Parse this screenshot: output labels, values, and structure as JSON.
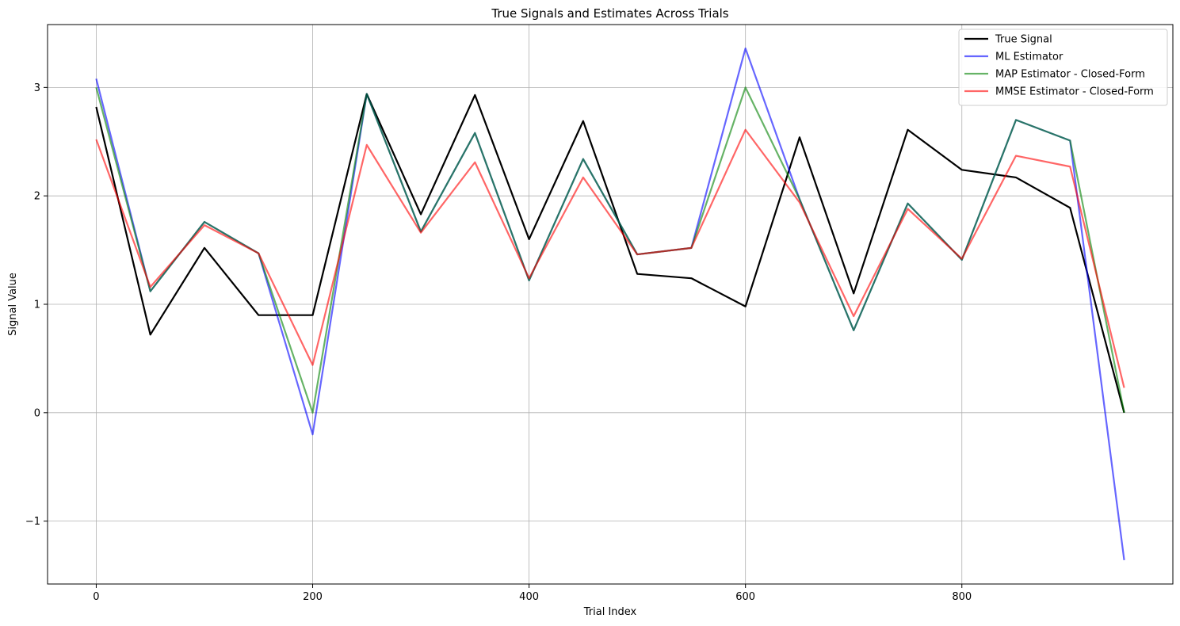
{
  "chart_data": {
    "type": "line",
    "title": "True Signals and Estimates Across Trials",
    "xlabel": "Trial Index",
    "ylabel": "Signal Value",
    "xlim": [
      -45,
      995
    ],
    "ylim": [
      -1.58,
      3.58
    ],
    "xticks": [
      0,
      200,
      400,
      600,
      800
    ],
    "xtick_labels": [
      "0",
      "200",
      "400",
      "600",
      "800"
    ],
    "yticks": [
      -1,
      0,
      1,
      2,
      3
    ],
    "ytick_labels": [
      "−1",
      "0",
      "1",
      "2",
      "3"
    ],
    "grid": true,
    "legend_position": "top-right",
    "x": [
      0,
      50,
      100,
      150,
      200,
      250,
      300,
      350,
      400,
      450,
      500,
      550,
      600,
      650,
      700,
      750,
      800,
      850,
      900,
      950
    ],
    "series": [
      {
        "name": "True Signal",
        "color": "#000000",
        "opacity": 1.0,
        "values": [
          2.82,
          0.72,
          1.52,
          0.9,
          0.9,
          2.94,
          1.83,
          2.93,
          1.6,
          2.69,
          1.28,
          1.24,
          0.98,
          2.54,
          1.1,
          2.61,
          2.24,
          2.17,
          1.89,
          0.0
        ]
      },
      {
        "name": "ML Estimator",
        "color": "#0000ff",
        "opacity": 0.6,
        "values": [
          3.08,
          1.12,
          1.76,
          1.47,
          -0.2,
          2.94,
          1.67,
          2.58,
          1.22,
          2.34,
          1.46,
          1.52,
          3.36,
          1.97,
          0.76,
          1.93,
          1.41,
          2.7,
          2.51,
          -1.36
        ]
      },
      {
        "name": "MAP Estimator - Closed-Form",
        "color": "#008000",
        "opacity": 0.6,
        "values": [
          3.0,
          1.12,
          1.76,
          1.47,
          0.0,
          2.94,
          1.67,
          2.58,
          1.22,
          2.34,
          1.46,
          1.52,
          3.0,
          1.97,
          0.76,
          1.93,
          1.41,
          2.7,
          2.51,
          0.0
        ]
      },
      {
        "name": "MMSE Estimator - Closed-Form",
        "color": "#ff0000",
        "opacity": 0.6,
        "values": [
          2.52,
          1.16,
          1.73,
          1.47,
          0.44,
          2.47,
          1.66,
          2.31,
          1.24,
          2.17,
          1.46,
          1.52,
          2.61,
          1.94,
          0.89,
          1.88,
          1.42,
          2.37,
          2.27,
          0.23
        ]
      }
    ]
  }
}
